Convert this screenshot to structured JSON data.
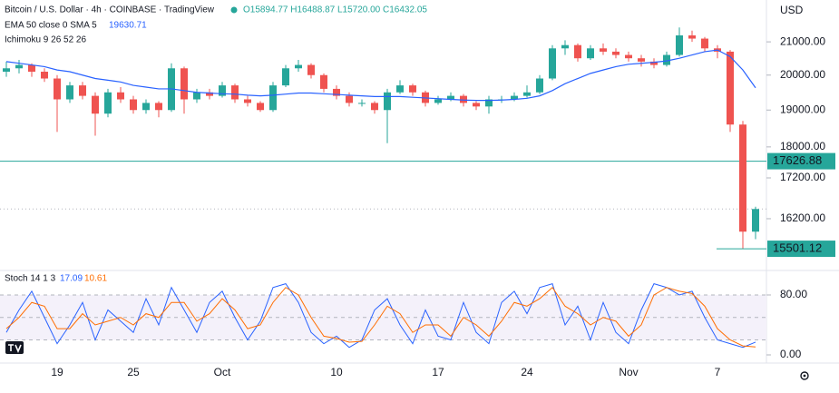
{
  "chart_data": [
    {
      "type": "candlestick",
      "title": "Bitcoin / U.S. Dollar · 4h · COINBASE · TradingView",
      "ohlc_header": "O15894.77 H16488.87 L15720.00 C16432.05",
      "indicator_label": "Ichimoku 9 26 52 26",
      "y_unit": "USD",
      "log_scale": true,
      "ylim": [
        15015,
        22330
      ],
      "yticks": [
        {
          "value": 21000,
          "label": "21000.00"
        },
        {
          "value": 20000,
          "label": "20000.00"
        },
        {
          "value": 19000,
          "label": "19000.00"
        },
        {
          "value": 18000,
          "label": "18000.00"
        },
        {
          "value": 17200,
          "label": "17200.00"
        },
        {
          "value": 16200,
          "label": "16200.00"
        }
      ],
      "up_color": "#26a69a",
      "down_color": "#ef5350",
      "categories": [
        null,
        null,
        null,
        null,
        "19",
        null,
        null,
        null,
        null,
        null,
        "25",
        null,
        null,
        null,
        null,
        null,
        null,
        "Oct",
        null,
        null,
        null,
        null,
        null,
        null,
        null,
        null,
        "10",
        null,
        null,
        null,
        null,
        null,
        null,
        null,
        "17",
        null,
        null,
        null,
        null,
        null,
        null,
        "24",
        null,
        null,
        null,
        null,
        null,
        null,
        null,
        "Nov",
        null,
        null,
        null,
        null,
        null,
        null,
        "7",
        null,
        null,
        null
      ],
      "ohlc": [
        [
          20100,
          20400,
          19950,
          20200
        ],
        [
          20200,
          20450,
          20050,
          20300
        ],
        [
          20300,
          20350,
          19950,
          20100
        ],
        [
          20100,
          20200,
          19800,
          19900
        ],
        [
          19900,
          20000,
          18400,
          19300
        ],
        [
          19300,
          19800,
          19200,
          19700
        ],
        [
          19700,
          19800,
          19300,
          19400
        ],
        [
          19400,
          19500,
          18300,
          18900
        ],
        [
          18900,
          19600,
          18800,
          19500
        ],
        [
          19500,
          19650,
          19200,
          19300
        ],
        [
          19300,
          19400,
          18900,
          19000
        ],
        [
          19000,
          19300,
          18900,
          19200
        ],
        [
          19200,
          19250,
          18800,
          19000
        ],
        [
          19000,
          20350,
          18950,
          20200
        ],
        [
          20200,
          20250,
          18900,
          19300
        ],
        [
          19300,
          19600,
          19200,
          19500
        ],
        [
          19500,
          19600,
          19300,
          19400
        ],
        [
          19400,
          19800,
          19350,
          19700
        ],
        [
          19700,
          19750,
          19200,
          19300
        ],
        [
          19300,
          19400,
          19100,
          19200
        ],
        [
          19200,
          19250,
          18950,
          19000
        ],
        [
          19000,
          19800,
          18950,
          19700
        ],
        [
          19700,
          20300,
          19650,
          20200
        ],
        [
          20200,
          20450,
          20100,
          20300
        ],
        [
          20300,
          20350,
          19900,
          20000
        ],
        [
          20000,
          20050,
          19500,
          19600
        ],
        [
          19600,
          19700,
          19300,
          19400
        ],
        [
          19400,
          19500,
          19100,
          19200
        ],
        [
          19200,
          19300,
          19100,
          19200
        ],
        [
          19200,
          19250,
          18900,
          19000
        ],
        [
          19000,
          19600,
          18100,
          19500
        ],
        [
          19500,
          19850,
          19450,
          19700
        ],
        [
          19700,
          19750,
          19400,
          19500
        ],
        [
          19500,
          19550,
          19100,
          19200
        ],
        [
          19200,
          19400,
          19150,
          19300
        ],
        [
          19300,
          19500,
          19250,
          19400
        ],
        [
          19400,
          19450,
          19100,
          19200
        ],
        [
          19200,
          19250,
          19000,
          19100
        ],
        [
          19100,
          19400,
          18900,
          19300
        ],
        [
          19300,
          19400,
          19200,
          19300
        ],
        [
          19300,
          19500,
          19250,
          19400
        ],
        [
          19400,
          19700,
          19350,
          19500
        ],
        [
          19500,
          20000,
          19450,
          19900
        ],
        [
          19900,
          20900,
          19850,
          20800
        ],
        [
          20800,
          21050,
          20600,
          20900
        ],
        [
          20900,
          20950,
          20400,
          20500
        ],
        [
          20500,
          20900,
          20450,
          20800
        ],
        [
          20800,
          20950,
          20600,
          20700
        ],
        [
          20700,
          20800,
          20500,
          20600
        ],
        [
          20600,
          20700,
          20400,
          20500
        ],
        [
          20500,
          20600,
          20250,
          20400
        ],
        [
          20400,
          20500,
          20200,
          20300
        ],
        [
          20300,
          20700,
          20250,
          20600
        ],
        [
          20600,
          21450,
          20550,
          21200
        ],
        [
          21200,
          21350,
          21000,
          21100
        ],
        [
          21100,
          21150,
          20700,
          20800
        ],
        [
          20800,
          20900,
          20500,
          20700
        ],
        [
          20700,
          20750,
          18400,
          18600
        ],
        [
          18600,
          18700,
          15501.12,
          15894.77
        ],
        [
          15894.77,
          16488.87,
          15720,
          16432.05
        ]
      ],
      "series": [
        {
          "name": "EMA 50 close 0 SMA 5",
          "color": "#2962ff",
          "values": [
            20400,
            20350,
            20300,
            20250,
            20150,
            20100,
            20000,
            19900,
            19850,
            19800,
            19700,
            19650,
            19600,
            19600,
            19550,
            19500,
            19480,
            19460,
            19450,
            19420,
            19400,
            19420,
            19450,
            19480,
            19480,
            19460,
            19440,
            19420,
            19400,
            19380,
            19380,
            19380,
            19360,
            19340,
            19320,
            19300,
            19280,
            19270,
            19270,
            19280,
            19300,
            19330,
            19400,
            19550,
            19750,
            19900,
            20050,
            20150,
            20250,
            20320,
            20350,
            20380,
            20420,
            20500,
            20600,
            20700,
            20750,
            20550,
            20150,
            19630.71
          ]
        }
      ],
      "price_line": {
        "value": 17626.88,
        "label": "17626.88",
        "color": "#26a69a"
      },
      "low_marker": {
        "value": 15501.12,
        "label": "15501.12",
        "color": "#26a69a"
      }
    },
    {
      "type": "line",
      "title": "Stoch 14 1 3",
      "ylim": [
        -10.9,
        112.7
      ],
      "yticks": [
        {
          "value": 80,
          "label": "80.00"
        },
        {
          "value": 0,
          "label": "0.00"
        }
      ],
      "bands": [
        80,
        50,
        20
      ],
      "series": [
        {
          "color": "#2962ff",
          "values": [
            30,
            60,
            85,
            50,
            15,
            40,
            70,
            20,
            60,
            45,
            30,
            75,
            40,
            90,
            60,
            30,
            70,
            85,
            50,
            20,
            45,
            90,
            95,
            70,
            30,
            15,
            25,
            10,
            20,
            60,
            75,
            40,
            15,
            60,
            25,
            20,
            70,
            30,
            15,
            70,
            85,
            55,
            90,
            95,
            40,
            65,
            20,
            70,
            30,
            15,
            60,
            95,
            90,
            80,
            85,
            50,
            20,
            15,
            10,
            17.09
          ]
        },
        {
          "color": "#ff6d00",
          "values": [
            35,
            50,
            70,
            65,
            35,
            35,
            55,
            40,
            45,
            50,
            40,
            55,
            50,
            70,
            70,
            45,
            55,
            75,
            60,
            35,
            40,
            70,
            90,
            80,
            50,
            25,
            22,
            17,
            18,
            40,
            65,
            55,
            30,
            40,
            40,
            25,
            50,
            40,
            25,
            45,
            70,
            65,
            75,
            90,
            65,
            55,
            40,
            50,
            45,
            25,
            40,
            80,
            90,
            85,
            82,
            65,
            35,
            20,
            12,
            10.61
          ]
        }
      ]
    }
  ]
}
